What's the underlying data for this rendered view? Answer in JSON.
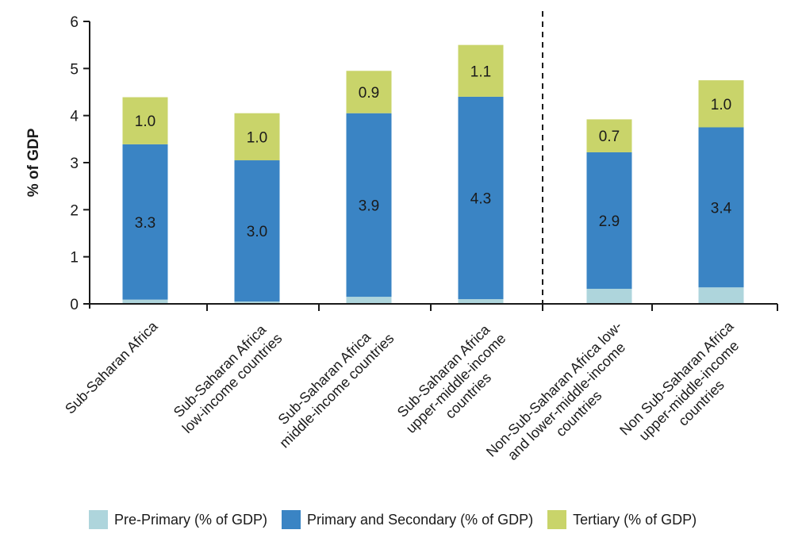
{
  "chart_data": {
    "type": "bar",
    "stacked": true,
    "title": "",
    "xlabel": "",
    "ylabel": "% of GDP",
    "ylim": [
      0,
      6
    ],
    "yticks": [
      0,
      1,
      2,
      3,
      4,
      5,
      6
    ],
    "grid": false,
    "legend_position": "bottom",
    "separator_after_category": 4,
    "categories": [
      [
        "Sub-Saharan Africa"
      ],
      [
        "Sub-Saharan Africa",
        "low-income countries"
      ],
      [
        "Sub-Saharan Africa",
        "middle-income countries"
      ],
      [
        "Sub-Saharan Africa",
        "upper-middle-income",
        "countries"
      ],
      [
        "Non-Sub-Saharan Africa low-",
        "and lower-middle-income",
        "countries"
      ],
      [
        "Non Sub-Saharan Africa",
        "upper-middle-income",
        "countries"
      ]
    ],
    "series": [
      {
        "name": "Pre-Primary (% of GDP)",
        "color": "#AED5DC",
        "values": [
          0.09,
          0.05,
          0.15,
          0.1,
          0.32,
          0.35
        ],
        "labels": [
          "",
          "",
          "",
          "",
          "",
          ""
        ]
      },
      {
        "name": "Primary and Secondary (% of GDP)",
        "color": "#3A84C4",
        "values": [
          3.3,
          3.0,
          3.9,
          4.3,
          2.9,
          3.4
        ],
        "labels": [
          "3.3",
          "3.0",
          "3.9",
          "4.3",
          "2.9",
          "3.4"
        ]
      },
      {
        "name": "Tertiary (% of GDP)",
        "color": "#C9D46A",
        "values": [
          1.0,
          1.0,
          0.9,
          1.1,
          0.7,
          1.0
        ],
        "labels": [
          "1.0",
          "1.0",
          "0.9",
          "1.1",
          "0.7",
          "1.0"
        ]
      }
    ]
  }
}
